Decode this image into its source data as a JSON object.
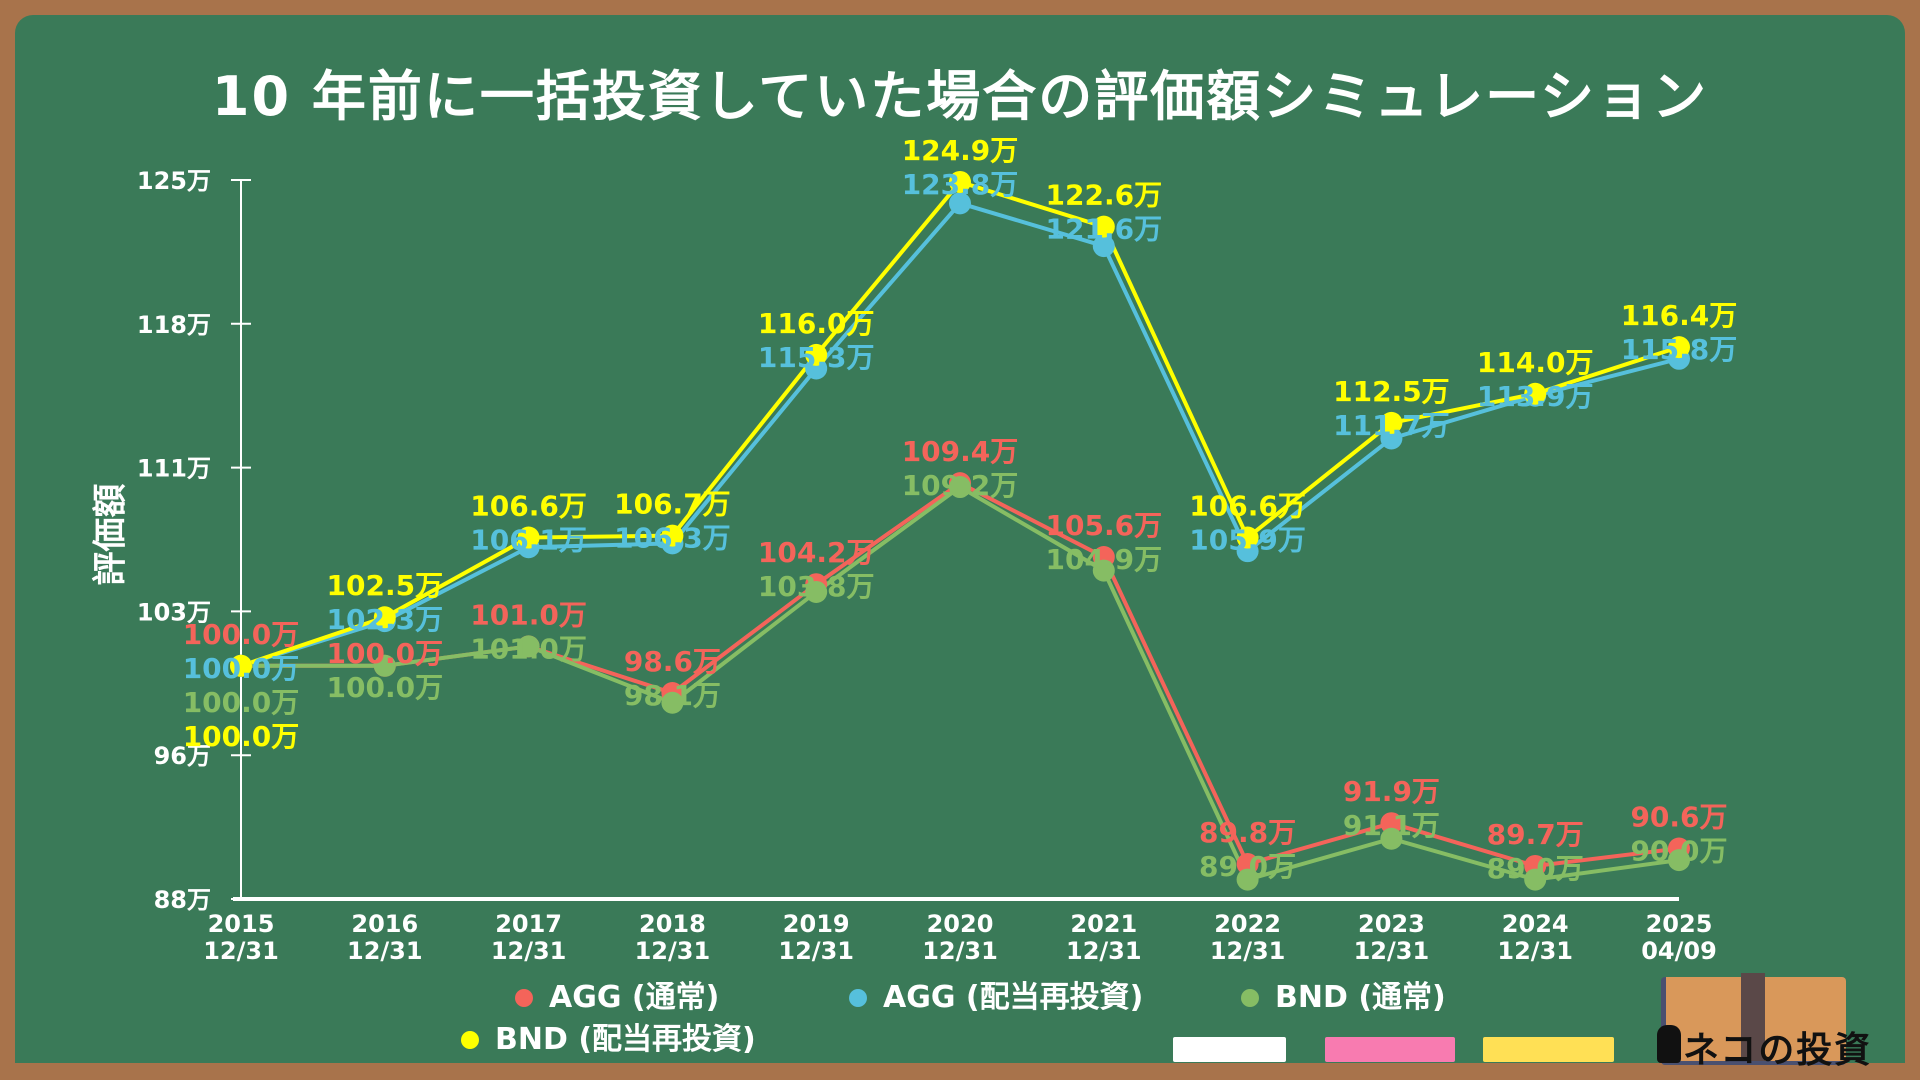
{
  "title": "10 年前に一括投資していた場合の評価額シミュレーション",
  "chart_data": {
    "type": "line",
    "title": "10 年前に一括投資していた場合の評価額シミュレーション",
    "ylabel": "評価額",
    "xlabel": "",
    "categories": [
      [
        "2015",
        "12/31"
      ],
      [
        "2016",
        "12/31"
      ],
      [
        "2017",
        "12/31"
      ],
      [
        "2018",
        "12/31"
      ],
      [
        "2019",
        "12/31"
      ],
      [
        "2020",
        "12/31"
      ],
      [
        "2021",
        "12/31"
      ],
      [
        "2022",
        "12/31"
      ],
      [
        "2023",
        "12/31"
      ],
      [
        "2024",
        "12/31"
      ],
      [
        "2025",
        "04/09"
      ]
    ],
    "ylim": [
      88,
      125
    ],
    "yticks": [
      "88万",
      "96万",
      "103万",
      "111万",
      "118万",
      "125万"
    ],
    "unit_suffix": "万",
    "grid": false,
    "legend_position": "bottom",
    "series": [
      {
        "name": "AGG (通常)",
        "color": "#f4645a",
        "values": [
          100.0,
          100.0,
          101.0,
          98.6,
          104.2,
          109.4,
          105.6,
          89.8,
          91.9,
          89.7,
          90.6
        ]
      },
      {
        "name": "AGG (配当再投資)",
        "color": "#56c0dc",
        "values": [
          100.0,
          102.3,
          106.1,
          106.3,
          115.3,
          123.8,
          121.6,
          105.9,
          111.7,
          113.9,
          115.8
        ]
      },
      {
        "name": "BND (通常)",
        "color": "#86bd64",
        "values": [
          100.0,
          100.0,
          101.0,
          98.1,
          103.8,
          109.2,
          104.9,
          89.0,
          91.1,
          89.0,
          90.0
        ]
      },
      {
        "name": "BND (配当再投資)",
        "color": "#ffff00",
        "values": [
          100.0,
          102.5,
          106.6,
          106.7,
          116.0,
          124.9,
          122.6,
          106.6,
          112.5,
          114.0,
          116.4
        ]
      }
    ]
  },
  "logo": {
    "text": "ネコの投資"
  },
  "colors": {
    "board": "#3a7a58",
    "frame": "#a8734b",
    "eraser_white": "#ffffff",
    "eraser_pink": "#f87bb0",
    "eraser_yellow": "#ffe055"
  }
}
